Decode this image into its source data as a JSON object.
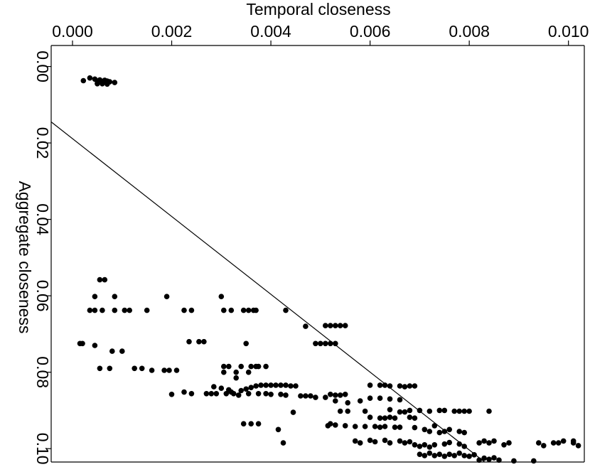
{
  "chart_data": {
    "type": "scatter",
    "xlabel": "Temporal closeness",
    "ylabel": "Aggregate closeness",
    "xlim": [
      -0.00043,
      0.01032
    ],
    "ylim": [
      -0.0055,
      0.1035
    ],
    "x_axis_position": "top",
    "y_axis_reversed": true,
    "x_ticks": [
      0.0,
      0.002,
      0.004,
      0.006,
      0.008,
      0.01
    ],
    "x_tick_labels": [
      "0.000",
      "0.002",
      "0.004",
      "0.006",
      "0.008",
      "0.010"
    ],
    "y_ticks": [
      0.0,
      0.02,
      0.04,
      0.06,
      0.08,
      0.1
    ],
    "y_tick_labels": [
      "0.00",
      "0.02",
      "0.04",
      "0.06",
      "0.08",
      "0.10"
    ],
    "grid": false,
    "fit_line": {
      "x": [
        -0.00043,
        0.00831
      ],
      "y": [
        0.0145,
        0.1035
      ]
    },
    "point_color": "#000000",
    "points": [
      [
        0.00022,
        0.0037
      ],
      [
        0.00035,
        0.003
      ],
      [
        0.00045,
        0.0033
      ],
      [
        0.0005,
        0.0038
      ],
      [
        0.00055,
        0.0035
      ],
      [
        0.0006,
        0.0039
      ],
      [
        0.00065,
        0.0036
      ],
      [
        0.0007,
        0.0038
      ],
      [
        0.00075,
        0.004
      ],
      [
        0.00085,
        0.0042
      ],
      [
        0.0005,
        0.0045
      ],
      [
        0.0006,
        0.0045
      ],
      [
        0.0007,
        0.0046
      ],
      [
        0.00015,
        0.0725
      ],
      [
        0.0002,
        0.0725
      ],
      [
        0.00045,
        0.073
      ],
      [
        0.00055,
        0.0558
      ],
      [
        0.00065,
        0.0558
      ],
      [
        0.0006,
        0.0638
      ],
      [
        0.00045,
        0.0602
      ],
      [
        0.00045,
        0.0638
      ],
      [
        0.00035,
        0.0638
      ],
      [
        0.00085,
        0.0602
      ],
      [
        0.00085,
        0.0638
      ],
      [
        0.00105,
        0.0638
      ],
      [
        0.00115,
        0.0638
      ],
      [
        0.0015,
        0.0638
      ],
      [
        0.0008,
        0.0745
      ],
      [
        0.001,
        0.0745
      ],
      [
        0.00055,
        0.079
      ],
      [
        0.00075,
        0.079
      ],
      [
        0.00125,
        0.079
      ],
      [
        0.0014,
        0.079
      ],
      [
        0.0016,
        0.0795
      ],
      [
        0.00185,
        0.0795
      ],
      [
        0.00195,
        0.0795
      ],
      [
        0.0021,
        0.0795
      ],
      [
        0.0019,
        0.0602
      ],
      [
        0.00225,
        0.0638
      ],
      [
        0.0024,
        0.0638
      ],
      [
        0.00235,
        0.072
      ],
      [
        0.00255,
        0.072
      ],
      [
        0.00265,
        0.072
      ],
      [
        0.002,
        0.0858
      ],
      [
        0.00225,
        0.0852
      ],
      [
        0.0024,
        0.0856
      ],
      [
        0.0027,
        0.0856
      ],
      [
        0.0028,
        0.0856
      ],
      [
        0.0029,
        0.0856
      ],
      [
        0.003,
        0.0602
      ],
      [
        0.00305,
        0.0638
      ],
      [
        0.0032,
        0.0638
      ],
      [
        0.00345,
        0.0638
      ],
      [
        0.00365,
        0.0638
      ],
      [
        0.0037,
        0.0638
      ],
      [
        0.00355,
        0.0638
      ],
      [
        0.0043,
        0.0638
      ],
      [
        0.00305,
        0.0785
      ],
      [
        0.00315,
        0.0785
      ],
      [
        0.00305,
        0.08
      ],
      [
        0.0033,
        0.08
      ],
      [
        0.00355,
        0.08
      ],
      [
        0.0036,
        0.0785
      ],
      [
        0.0037,
        0.0785
      ],
      [
        0.0035,
        0.0725
      ],
      [
        0.0039,
        0.0785
      ],
      [
        0.00375,
        0.0785
      ],
      [
        0.0034,
        0.0785
      ],
      [
        0.0033,
        0.0815
      ],
      [
        0.00285,
        0.0838
      ],
      [
        0.003,
        0.0842
      ],
      [
        0.00315,
        0.0846
      ],
      [
        0.0032,
        0.0852
      ],
      [
        0.0034,
        0.0848
      ],
      [
        0.0035,
        0.0844
      ],
      [
        0.0036,
        0.084
      ],
      [
        0.0037,
        0.0836
      ],
      [
        0.0038,
        0.0834
      ],
      [
        0.0039,
        0.0834
      ],
      [
        0.004,
        0.0834
      ],
      [
        0.0041,
        0.0834
      ],
      [
        0.0042,
        0.0834
      ],
      [
        0.0043,
        0.0834
      ],
      [
        0.0044,
        0.0836
      ],
      [
        0.0045,
        0.0836
      ],
      [
        0.00355,
        0.0856
      ],
      [
        0.00375,
        0.0856
      ],
      [
        0.0039,
        0.0856
      ],
      [
        0.004,
        0.0858
      ],
      [
        0.0042,
        0.0858
      ],
      [
        0.0043,
        0.086
      ],
      [
        0.00335,
        0.086
      ],
      [
        0.00325,
        0.0856
      ],
      [
        0.0031,
        0.0856
      ],
      [
        0.0046,
        0.0862
      ],
      [
        0.0047,
        0.0862
      ],
      [
        0.0048,
        0.0862
      ],
      [
        0.0049,
        0.0866
      ],
      [
        0.00445,
        0.0905
      ],
      [
        0.00415,
        0.095
      ],
      [
        0.00375,
        0.0935
      ],
      [
        0.0036,
        0.0935
      ],
      [
        0.00345,
        0.0935
      ],
      [
        0.00425,
        0.0985
      ],
      [
        0.0047,
        0.068
      ],
      [
        0.0049,
        0.0725
      ],
      [
        0.005,
        0.0725
      ],
      [
        0.0051,
        0.0725
      ],
      [
        0.0052,
        0.0725
      ],
      [
        0.0053,
        0.0725
      ],
      [
        0.0051,
        0.0678
      ],
      [
        0.0052,
        0.0678
      ],
      [
        0.0053,
        0.0678
      ],
      [
        0.0054,
        0.0678
      ],
      [
        0.0055,
        0.0678
      ],
      [
        0.0052,
        0.0858
      ],
      [
        0.0053,
        0.086
      ],
      [
        0.0054,
        0.086
      ],
      [
        0.0055,
        0.0858
      ],
      [
        0.0051,
        0.0866
      ],
      [
        0.0053,
        0.0875
      ],
      [
        0.0052,
        0.0935
      ],
      [
        0.00515,
        0.094
      ],
      [
        0.0053,
        0.0938
      ],
      [
        0.0055,
        0.094
      ],
      [
        0.0057,
        0.0942
      ],
      [
        0.0059,
        0.0942
      ],
      [
        0.0061,
        0.0942
      ],
      [
        0.0062,
        0.0944
      ],
      [
        0.0063,
        0.0942
      ],
      [
        0.0065,
        0.0944
      ],
      [
        0.0066,
        0.0944
      ],
      [
        0.00555,
        0.088
      ],
      [
        0.0054,
        0.0902
      ],
      [
        0.00555,
        0.0902
      ],
      [
        0.0059,
        0.0902
      ],
      [
        0.006,
        0.0834
      ],
      [
        0.0062,
        0.0834
      ],
      [
        0.0063,
        0.0834
      ],
      [
        0.0064,
        0.0836
      ],
      [
        0.0066,
        0.0836
      ],
      [
        0.0068,
        0.0836
      ],
      [
        0.0069,
        0.0836
      ],
      [
        0.0067,
        0.0838
      ],
      [
        0.0058,
        0.0875
      ],
      [
        0.006,
        0.0868
      ],
      [
        0.0062,
        0.0868
      ],
      [
        0.0064,
        0.087
      ],
      [
        0.0066,
        0.0872
      ],
      [
        0.0064,
        0.0898
      ],
      [
        0.0066,
        0.0904
      ],
      [
        0.0067,
        0.0904
      ],
      [
        0.0068,
        0.09
      ],
      [
        0.007,
        0.09
      ],
      [
        0.006,
        0.0918
      ],
      [
        0.0062,
        0.092
      ],
      [
        0.0063,
        0.092
      ],
      [
        0.0064,
        0.0918
      ],
      [
        0.0065,
        0.092
      ],
      [
        0.0068,
        0.0918
      ],
      [
        0.0069,
        0.092
      ],
      [
        0.0072,
        0.0902
      ],
      [
        0.0074,
        0.09
      ],
      [
        0.0075,
        0.09
      ],
      [
        0.0077,
        0.0902
      ],
      [
        0.0078,
        0.0902
      ],
      [
        0.0079,
        0.0902
      ],
      [
        0.008,
        0.0902
      ],
      [
        0.0057,
        0.098
      ],
      [
        0.0058,
        0.0985
      ],
      [
        0.006,
        0.0978
      ],
      [
        0.0061,
        0.0982
      ],
      [
        0.0063,
        0.0978
      ],
      [
        0.0064,
        0.0985
      ],
      [
        0.0066,
        0.098
      ],
      [
        0.0067,
        0.0985
      ],
      [
        0.0068,
        0.0982
      ],
      [
        0.0069,
        0.099
      ],
      [
        0.007,
        0.0994
      ],
      [
        0.0071,
        0.099
      ],
      [
        0.0072,
        0.0996
      ],
      [
        0.0073,
        0.099
      ],
      [
        0.0075,
        0.0988
      ],
      [
        0.0076,
        0.0984
      ],
      [
        0.0078,
        0.0988
      ],
      [
        0.0079,
        0.0994
      ],
      [
        0.0072,
        0.0955
      ],
      [
        0.0074,
        0.0958
      ],
      [
        0.0075,
        0.0955
      ],
      [
        0.0076,
        0.095
      ],
      [
        0.0078,
        0.0955
      ],
      [
        0.0079,
        0.0958
      ],
      [
        0.0071,
        0.095
      ],
      [
        0.0069,
        0.0945
      ],
      [
        0.0073,
        0.094
      ],
      [
        0.007,
        0.1015
      ],
      [
        0.0071,
        0.1018
      ],
      [
        0.0072,
        0.1012
      ],
      [
        0.0073,
        0.1018
      ],
      [
        0.0074,
        0.1015
      ],
      [
        0.0075,
        0.102
      ],
      [
        0.0076,
        0.1015
      ],
      [
        0.0077,
        0.1018
      ],
      [
        0.0078,
        0.1012
      ],
      [
        0.0079,
        0.1018
      ],
      [
        0.008,
        0.102
      ],
      [
        0.0081,
        0.1016
      ],
      [
        0.0082,
        0.103
      ],
      [
        0.0083,
        0.1025
      ],
      [
        0.0084,
        0.1028
      ],
      [
        0.0085,
        0.1024
      ],
      [
        0.0086,
        0.103
      ],
      [
        0.0084,
        0.0902
      ],
      [
        0.0084,
        0.0985
      ],
      [
        0.0082,
        0.0985
      ],
      [
        0.0083,
        0.098
      ],
      [
        0.0085,
        0.098
      ],
      [
        0.0088,
        0.0985
      ],
      [
        0.0089,
        0.1032
      ],
      [
        0.0087,
        0.099
      ],
      [
        0.0094,
        0.0985
      ],
      [
        0.0095,
        0.0992
      ],
      [
        0.0097,
        0.0985
      ],
      [
        0.0098,
        0.0985
      ],
      [
        0.0099,
        0.098
      ],
      [
        0.0101,
        0.0985
      ],
      [
        0.0101,
        0.098
      ],
      [
        0.0102,
        0.0992
      ],
      [
        0.0093,
        0.1032
      ]
    ]
  }
}
